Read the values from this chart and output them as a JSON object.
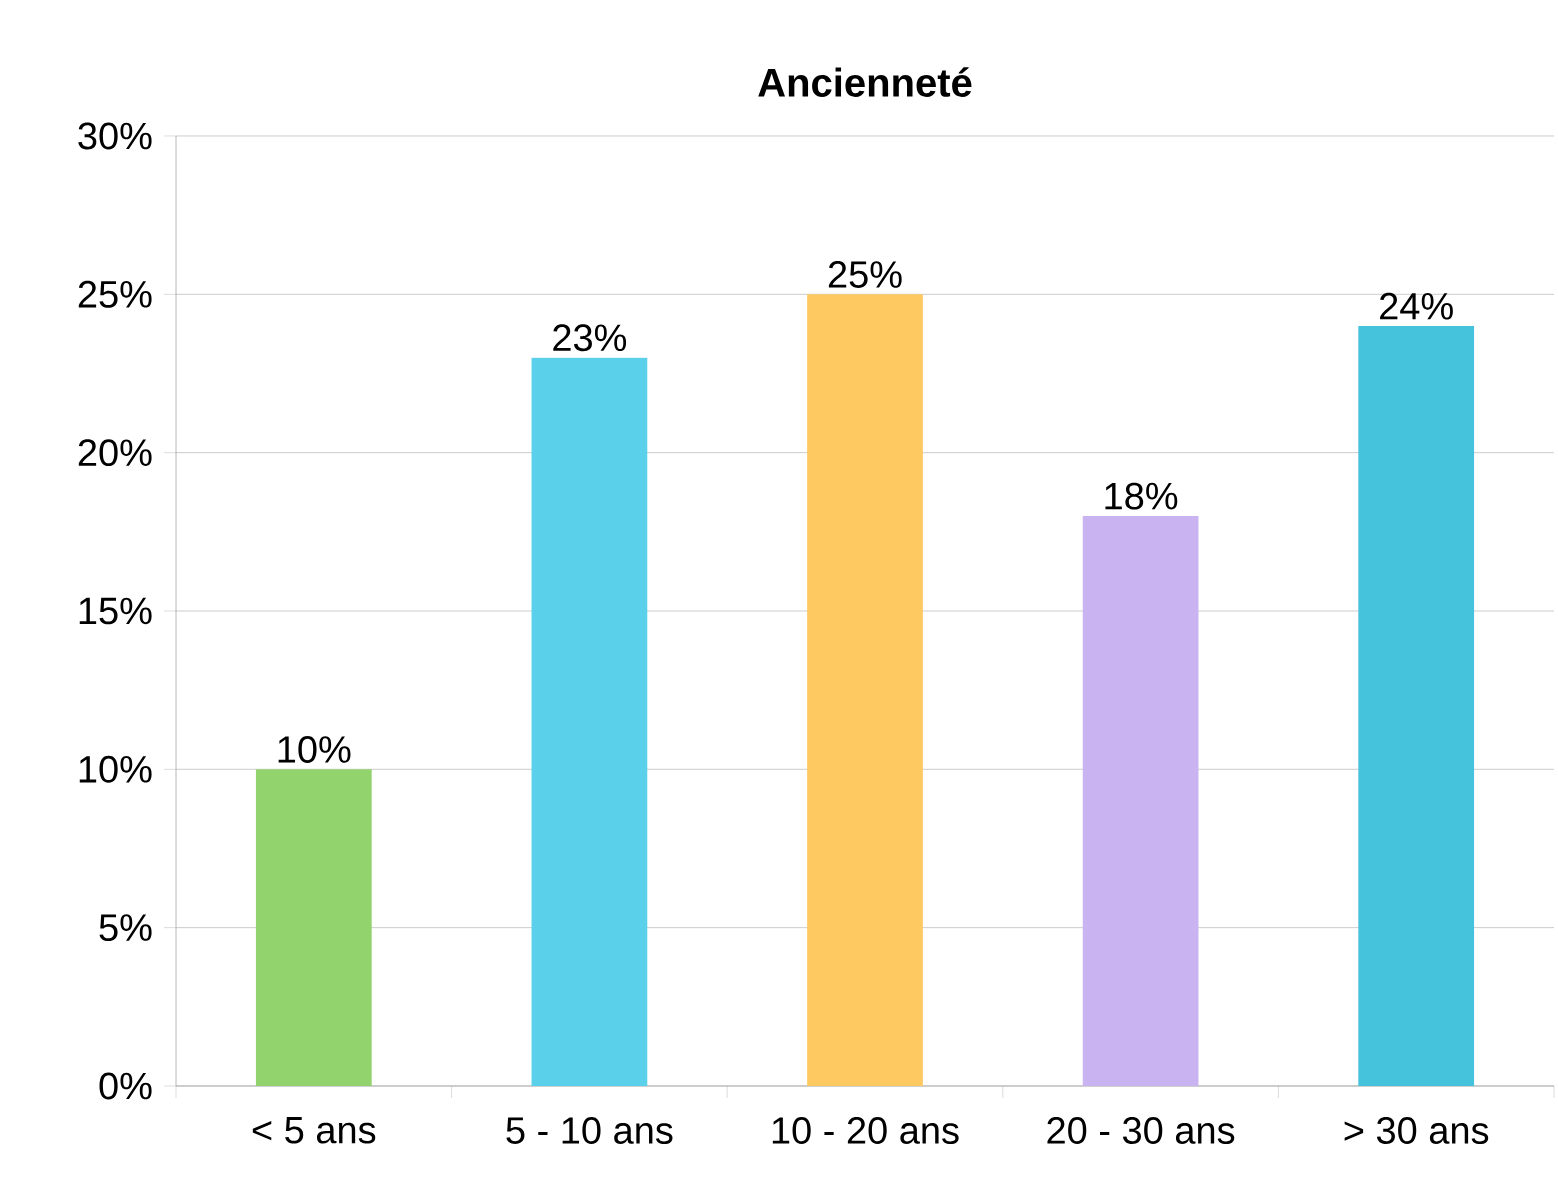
{
  "chart_data": {
    "type": "bar",
    "title": "Ancienneté",
    "categories": [
      "< 5 ans",
      "5 - 10 ans",
      "10 - 20 ans",
      "20 - 30 ans",
      "> 30 ans"
    ],
    "values": [
      10,
      23,
      25,
      18,
      24
    ],
    "colors": [
      "#92d36e",
      "#5bd0ea",
      "#fdc960",
      "#c9b3f0",
      "#45c3dd"
    ],
    "value_labels": [
      "10%",
      "23%",
      "25%",
      "18%",
      "24%"
    ],
    "ylim": [
      0,
      30
    ],
    "yticks": [
      {
        "value": 0,
        "label": "0%"
      },
      {
        "value": 5,
        "label": "5%"
      },
      {
        "value": 10,
        "label": "10%"
      },
      {
        "value": 15,
        "label": "15%"
      },
      {
        "value": 20,
        "label": "20%"
      },
      {
        "value": 25,
        "label": "25%"
      },
      {
        "value": 30,
        "label": "30%"
      }
    ],
    "grid": "y"
  }
}
